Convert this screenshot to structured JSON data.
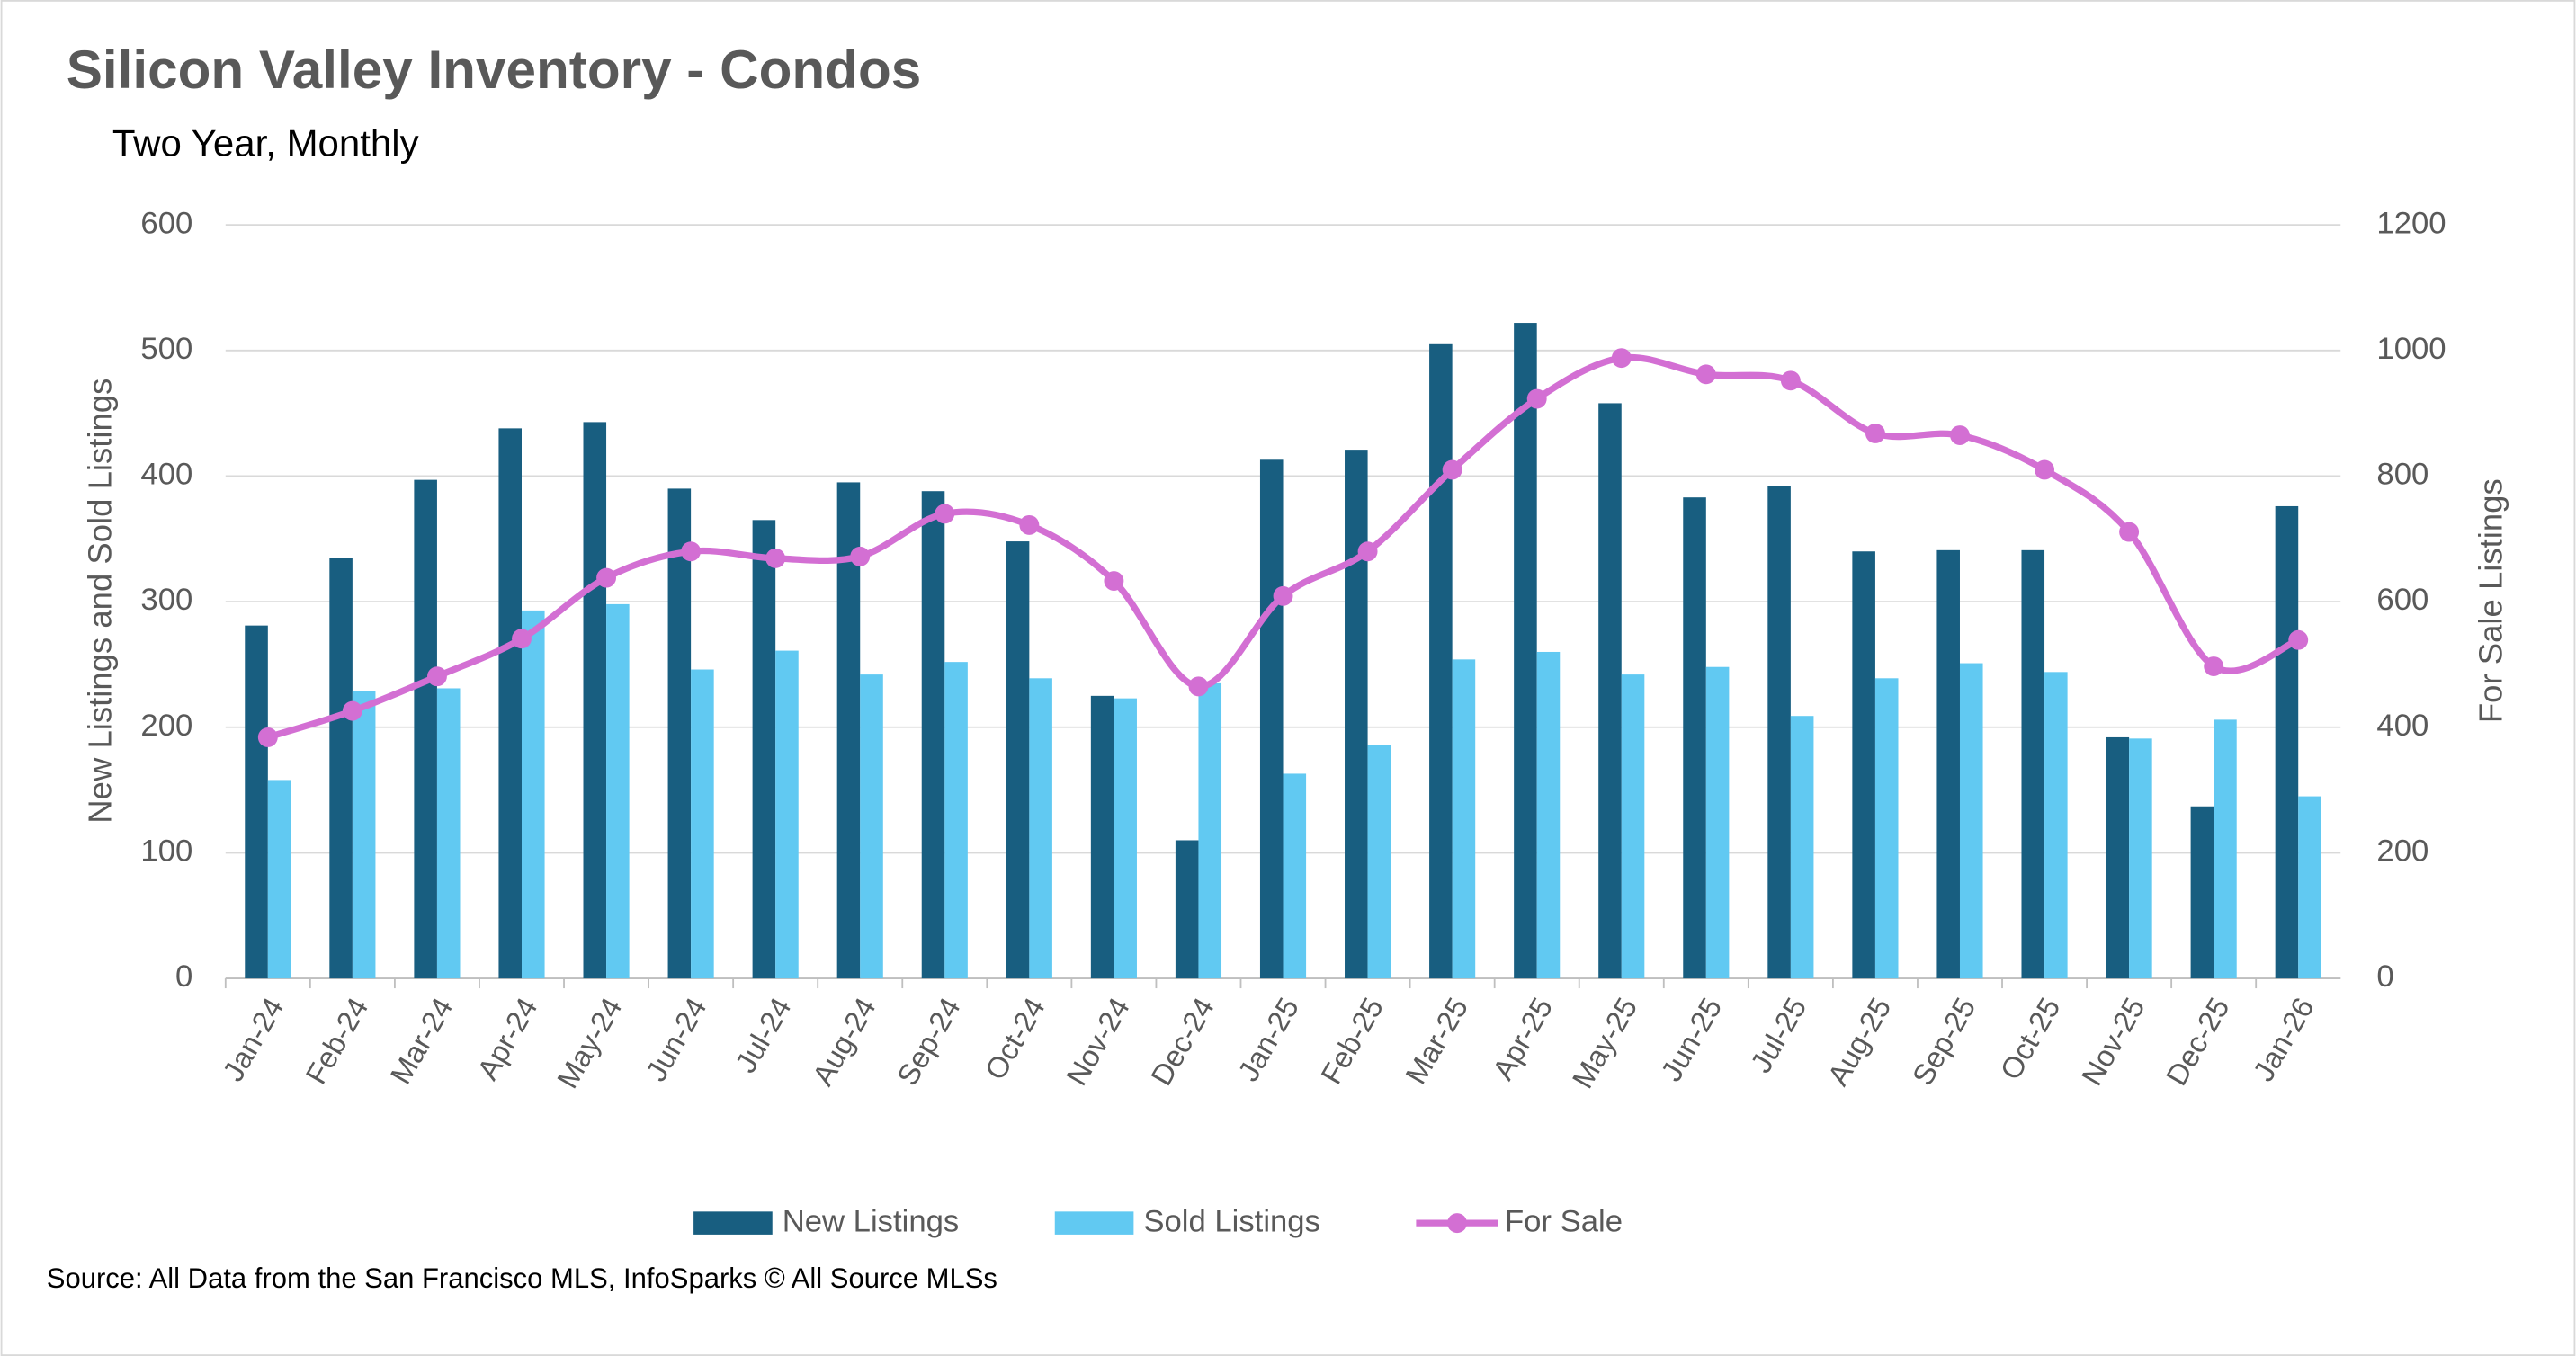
{
  "chart_data": {
    "type": "bar",
    "title": "Silicon Valley Inventory - Condos",
    "subtitle": "Two Year, Monthly",
    "y_label": "New Listings and Sold Listings",
    "y2_label": "For Sale Listings",
    "source": "Source: All Data from the San Francisco MLS, InfoSparks © All Source MLSs",
    "categories": [
      "Jan-24",
      "Feb-24",
      "Mar-24",
      "Apr-24",
      "May-24",
      "Jun-24",
      "Jul-24",
      "Aug-24",
      "Sep-24",
      "Oct-24",
      "Nov-24",
      "Dec-24",
      "Jan-25",
      "Feb-25",
      "Mar-25",
      "Apr-25",
      "May-25",
      "Jun-25",
      "Jul-25",
      "Aug-25",
      "Sep-25",
      "Oct-25",
      "Nov-25",
      "Dec-25",
      "Jan-26"
    ],
    "series": [
      {
        "name": "New Listings",
        "color": "#185e80",
        "type": "bar",
        "values": [
          281,
          335,
          397,
          438,
          443,
          390,
          365,
          395,
          388,
          348,
          225,
          110,
          413,
          421,
          505,
          522,
          458,
          383,
          392,
          340,
          341,
          341,
          192,
          137,
          376
        ]
      },
      {
        "name": "Sold Listings",
        "color": "#61c9f2",
        "type": "bar",
        "values": [
          158,
          229,
          231,
          293,
          298,
          246,
          261,
          242,
          252,
          239,
          223,
          235,
          163,
          186,
          254,
          260,
          242,
          248,
          209,
          239,
          251,
          244,
          191,
          206,
          145
        ]
      },
      {
        "name": "For Sale",
        "color": "#d36fd3",
        "type": "line",
        "axis": "y2",
        "values": [
          384,
          426,
          481,
          541,
          638,
          680,
          669,
          672,
          740,
          722,
          633,
          465,
          609,
          680,
          810,
          923,
          988,
          962,
          952,
          868,
          865,
          810,
          711,
          497,
          539
        ]
      }
    ],
    "ylim": [
      0,
      600
    ],
    "yticks": [
      0,
      100,
      200,
      300,
      400,
      500,
      600
    ],
    "y2lim": [
      0,
      1200
    ],
    "y2ticks": [
      0,
      200,
      400,
      600,
      800,
      1000,
      1200
    ],
    "grid": true,
    "legend": "bottom"
  }
}
